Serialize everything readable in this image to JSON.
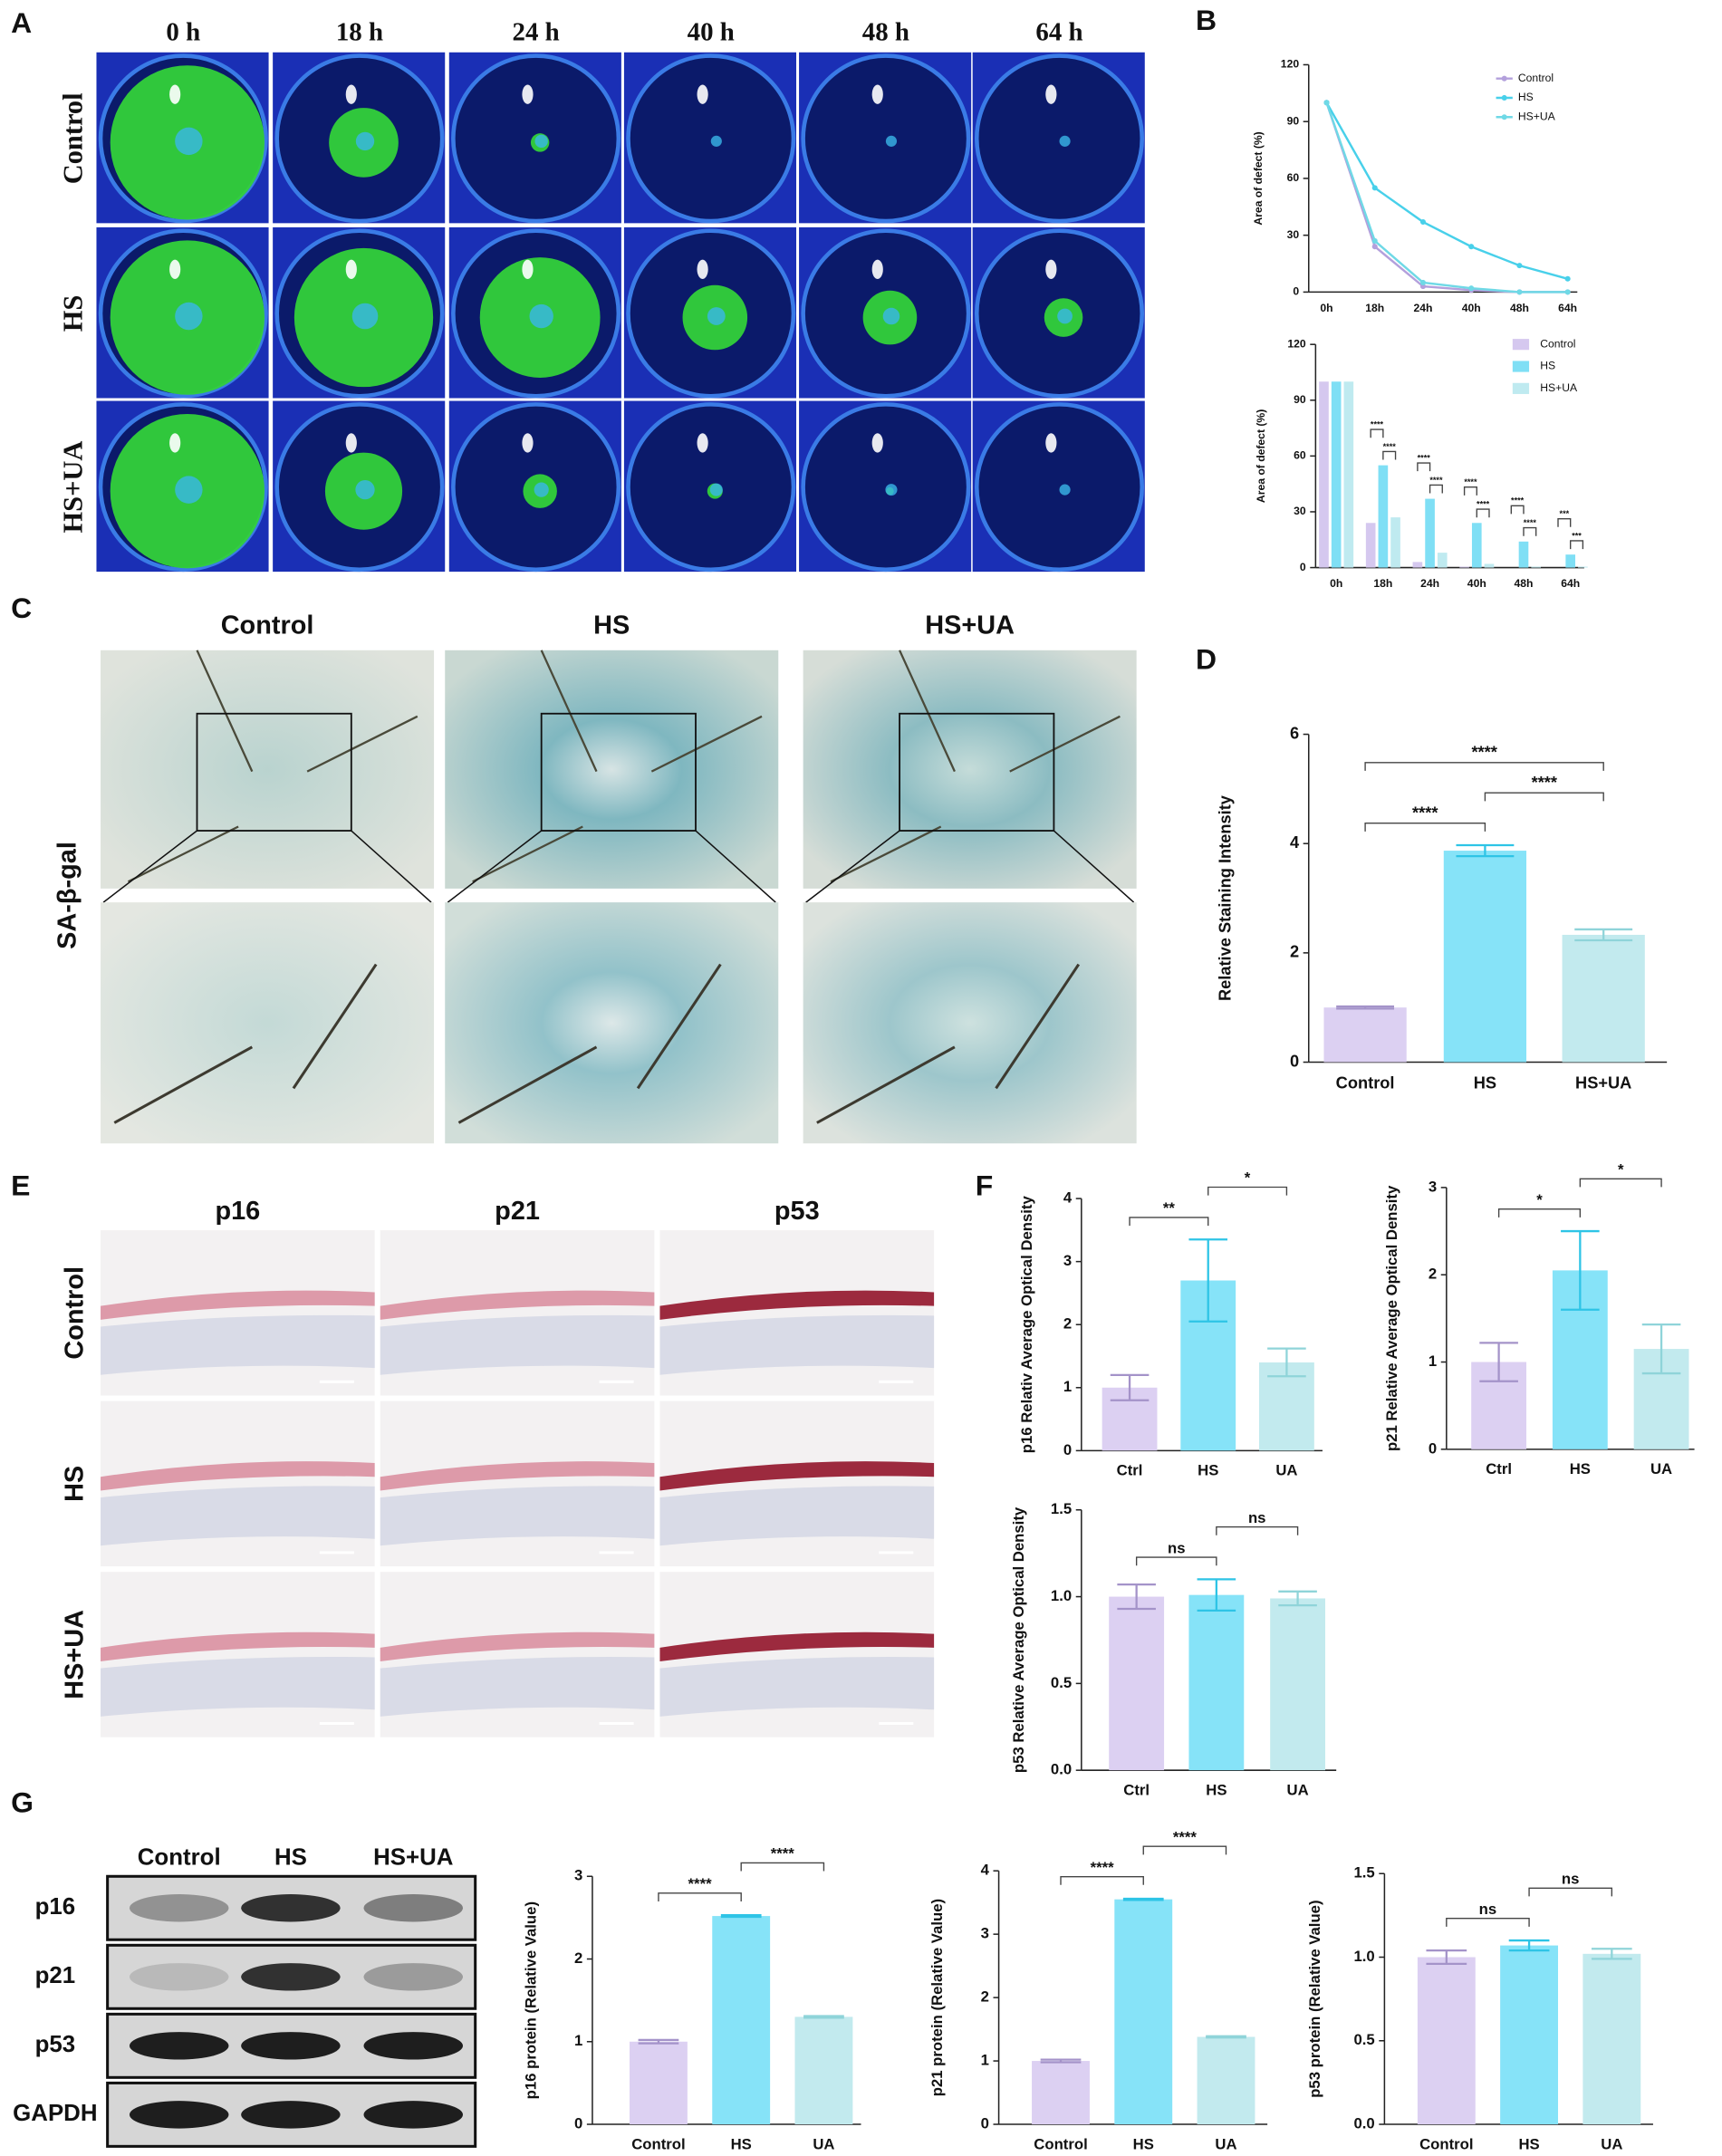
{
  "panel_labels": [
    "A",
    "B",
    "C",
    "D",
    "E",
    "F",
    "G"
  ],
  "panel_a": {
    "timepoints": [
      "0 h",
      "18 h",
      "24 h",
      "40 h",
      "48 h",
      "64 h"
    ],
    "groups": [
      "Control",
      "HS",
      "HS+UA"
    ]
  },
  "panel_c": {
    "groups": [
      "Control",
      "HS",
      "HS+UA"
    ],
    "stain": "SA-β-gal"
  },
  "panel_e": {
    "markers": [
      "p16",
      "p21",
      "p53"
    ],
    "groups": [
      "Control",
      "HS",
      "HS+UA"
    ]
  },
  "panel_g_blot": {
    "lanes": [
      "Control",
      "HS",
      "HS+UA"
    ],
    "proteins": [
      "p16",
      "p21",
      "p53",
      "GAPDH"
    ]
  },
  "chart_data": [
    {
      "type": "line",
      "ylabel": "Area of defect (%)",
      "categories": [
        "0h",
        "18h",
        "24h",
        "40h",
        "48h",
        "64h"
      ],
      "ylim": [
        0,
        120
      ],
      "yticks": [
        0,
        30,
        60,
        90,
        120
      ],
      "series": [
        {
          "name": "Control",
          "color": "#b3a0dc",
          "values": [
            100,
            24,
            3,
            1,
            0,
            0
          ]
        },
        {
          "name": "HS",
          "color": "#48d0ea",
          "values": [
            100,
            55,
            37,
            24,
            14,
            7
          ]
        },
        {
          "name": "HS+UA",
          "color": "#6fd9e6",
          "values": [
            100,
            27,
            5,
            2,
            0,
            0
          ]
        }
      ]
    },
    {
      "type": "grouped_bar",
      "ylabel": "Area of defect (%)",
      "categories": [
        "0h",
        "18h",
        "24h",
        "40h",
        "48h",
        "64h"
      ],
      "ylim": [
        0,
        120
      ],
      "yticks": [
        0,
        30,
        60,
        90,
        120
      ],
      "series": [
        {
          "name": "Control",
          "color": "#d5c8ef",
          "values": [
            100,
            24,
            3,
            0.5,
            0,
            0
          ]
        },
        {
          "name": "HS",
          "color": "#7fdff5",
          "values": [
            100,
            55,
            37,
            24,
            14,
            7
          ]
        },
        {
          "name": "HS+UA",
          "color": "#bfeaf0",
          "values": [
            100,
            27,
            8,
            2,
            0.5,
            0.5
          ]
        }
      ],
      "comparisons": [
        {
          "category": 1,
          "groups": [
            1,
            2
          ],
          "label": "****"
        },
        {
          "category": 1,
          "groups": [
            0,
            1
          ],
          "label": "****"
        },
        {
          "category": 2,
          "groups": [
            1,
            2
          ],
          "label": "****"
        },
        {
          "category": 2,
          "groups": [
            0,
            1
          ],
          "label": "****"
        },
        {
          "category": 3,
          "groups": [
            1,
            2
          ],
          "label": "****"
        },
        {
          "category": 3,
          "groups": [
            0,
            1
          ],
          "label": "****"
        },
        {
          "category": 4,
          "groups": [
            1,
            2
          ],
          "label": "****"
        },
        {
          "category": 4,
          "groups": [
            0,
            1
          ],
          "label": "****"
        },
        {
          "category": 5,
          "groups": [
            1,
            2
          ],
          "label": "***"
        },
        {
          "category": 5,
          "groups": [
            0,
            1
          ],
          "label": "***"
        }
      ]
    },
    {
      "type": "bar",
      "ylabel": "Relative Staining Intensity",
      "categories": [
        "Control",
        "HS",
        "HS+UA"
      ],
      "values": [
        1,
        3.87,
        2.33
      ],
      "errors": [
        0.02,
        0.1,
        0.1
      ],
      "colors": [
        "#dcd0f2",
        "#86e3f8",
        "#c2eaee"
      ],
      "error_colors": [
        "#a493c9",
        "#2ec4e6",
        "#8fd4d9"
      ],
      "ylim": [
        0,
        6
      ],
      "yticks": [
        0,
        2,
        4,
        6
      ],
      "comparisons": [
        {
          "groups": [
            0,
            1
          ],
          "label": "****"
        },
        {
          "groups": [
            1,
            2
          ],
          "label": "****"
        },
        {
          "groups": [
            0,
            2
          ],
          "label": "****"
        }
      ]
    },
    {
      "type": "bar",
      "ylabel": "p16 Relativ Average Optical Density",
      "categories": [
        "Ctrl",
        "HS",
        "UA"
      ],
      "values": [
        1.0,
        2.7,
        1.4
      ],
      "errors": [
        0.2,
        0.65,
        0.22
      ],
      "colors": [
        "#dcd0f2",
        "#86e3f8",
        "#c2eaee"
      ],
      "error_colors": [
        "#a493c9",
        "#2ec4e6",
        "#8fd4d9"
      ],
      "ylim": [
        0,
        4
      ],
      "yticks": [
        0,
        1,
        2,
        3,
        4
      ],
      "comparisons": [
        {
          "groups": [
            0,
            1
          ],
          "label": "**"
        },
        {
          "groups": [
            1,
            2
          ],
          "label": "*"
        }
      ]
    },
    {
      "type": "bar",
      "ylabel": "p21 Relative Average Optical Density",
      "categories": [
        "Ctrl",
        "HS",
        "UA"
      ],
      "values": [
        1.0,
        2.05,
        1.15
      ],
      "errors": [
        0.22,
        0.45,
        0.28
      ],
      "colors": [
        "#dcd0f2",
        "#86e3f8",
        "#c2eaee"
      ],
      "error_colors": [
        "#a493c9",
        "#2ec4e6",
        "#8fd4d9"
      ],
      "ylim": [
        0,
        3
      ],
      "yticks": [
        0,
        1,
        2,
        3
      ],
      "comparisons": [
        {
          "groups": [
            0,
            1
          ],
          "label": "*"
        },
        {
          "groups": [
            1,
            2
          ],
          "label": "*"
        }
      ]
    },
    {
      "type": "bar",
      "ylabel": "p53 Relative Average Optical Density",
      "categories": [
        "Ctrl",
        "HS",
        "UA"
      ],
      "values": [
        1.0,
        1.01,
        0.99
      ],
      "errors": [
        0.07,
        0.09,
        0.04
      ],
      "colors": [
        "#dcd0f2",
        "#86e3f8",
        "#c2eaee"
      ],
      "error_colors": [
        "#a493c9",
        "#2ec4e6",
        "#8fd4d9"
      ],
      "ylim": [
        0,
        1.5
      ],
      "yticks": [
        {
          "value": 0,
          "label": "0.0"
        },
        {
          "value": 0.5,
          "label": "0.5"
        },
        {
          "value": 1,
          "label": "1.0"
        },
        {
          "value": 1.5,
          "label": "1.5"
        }
      ],
      "comparisons": [
        {
          "groups": [
            0,
            1
          ],
          "label": "ns"
        },
        {
          "groups": [
            1,
            2
          ],
          "label": "ns"
        }
      ]
    },
    {
      "type": "bar",
      "ylabel": "p16 protein (Relative Value)",
      "categories": [
        "Control",
        "HS",
        "UA"
      ],
      "values": [
        1.0,
        2.52,
        1.3
      ],
      "errors": [
        0.02,
        0.01,
        0.01
      ],
      "colors": [
        "#dcd0f2",
        "#86e3f8",
        "#c2eaee"
      ],
      "error_colors": [
        "#a493c9",
        "#2ec4e6",
        "#8fd4d9"
      ],
      "ylim": [
        0,
        3
      ],
      "yticks": [
        0,
        1,
        2,
        3
      ],
      "comparisons": [
        {
          "groups": [
            0,
            1
          ],
          "label": "****"
        },
        {
          "groups": [
            1,
            2
          ],
          "label": "****"
        }
      ]
    },
    {
      "type": "bar",
      "ylabel": "p21 protein (Relative Value)",
      "categories": [
        "Control",
        "HS",
        "UA"
      ],
      "values": [
        1.0,
        3.55,
        1.38
      ],
      "errors": [
        0.02,
        0.01,
        0.01
      ],
      "colors": [
        "#dcd0f2",
        "#86e3f8",
        "#c2eaee"
      ],
      "error_colors": [
        "#a493c9",
        "#2ec4e6",
        "#8fd4d9"
      ],
      "ylim": [
        0,
        4
      ],
      "yticks": [
        0,
        1,
        2,
        3,
        4
      ],
      "comparisons": [
        {
          "groups": [
            0,
            1
          ],
          "label": "****"
        },
        {
          "groups": [
            1,
            2
          ],
          "label": "****"
        }
      ]
    },
    {
      "type": "bar",
      "ylabel": "p53 protein (Relative Value)",
      "categories": [
        "Control",
        "HS",
        "UA"
      ],
      "values": [
        1.0,
        1.07,
        1.02
      ],
      "errors": [
        0.04,
        0.03,
        0.03
      ],
      "colors": [
        "#dcd0f2",
        "#86e3f8",
        "#c2eaee"
      ],
      "error_colors": [
        "#a493c9",
        "#2ec4e6",
        "#8fd4d9"
      ],
      "ylim": [
        0,
        1.5
      ],
      "yticks": [
        {
          "value": 0,
          "label": "0.0"
        },
        {
          "value": 0.5,
          "label": "0.5"
        },
        {
          "value": 1,
          "label": "1.0"
        },
        {
          "value": 1.5,
          "label": "1.5"
        }
      ],
      "comparisons": [
        {
          "groups": [
            0,
            1
          ],
          "label": "ns"
        },
        {
          "groups": [
            1,
            2
          ],
          "label": "ns"
        }
      ]
    }
  ]
}
